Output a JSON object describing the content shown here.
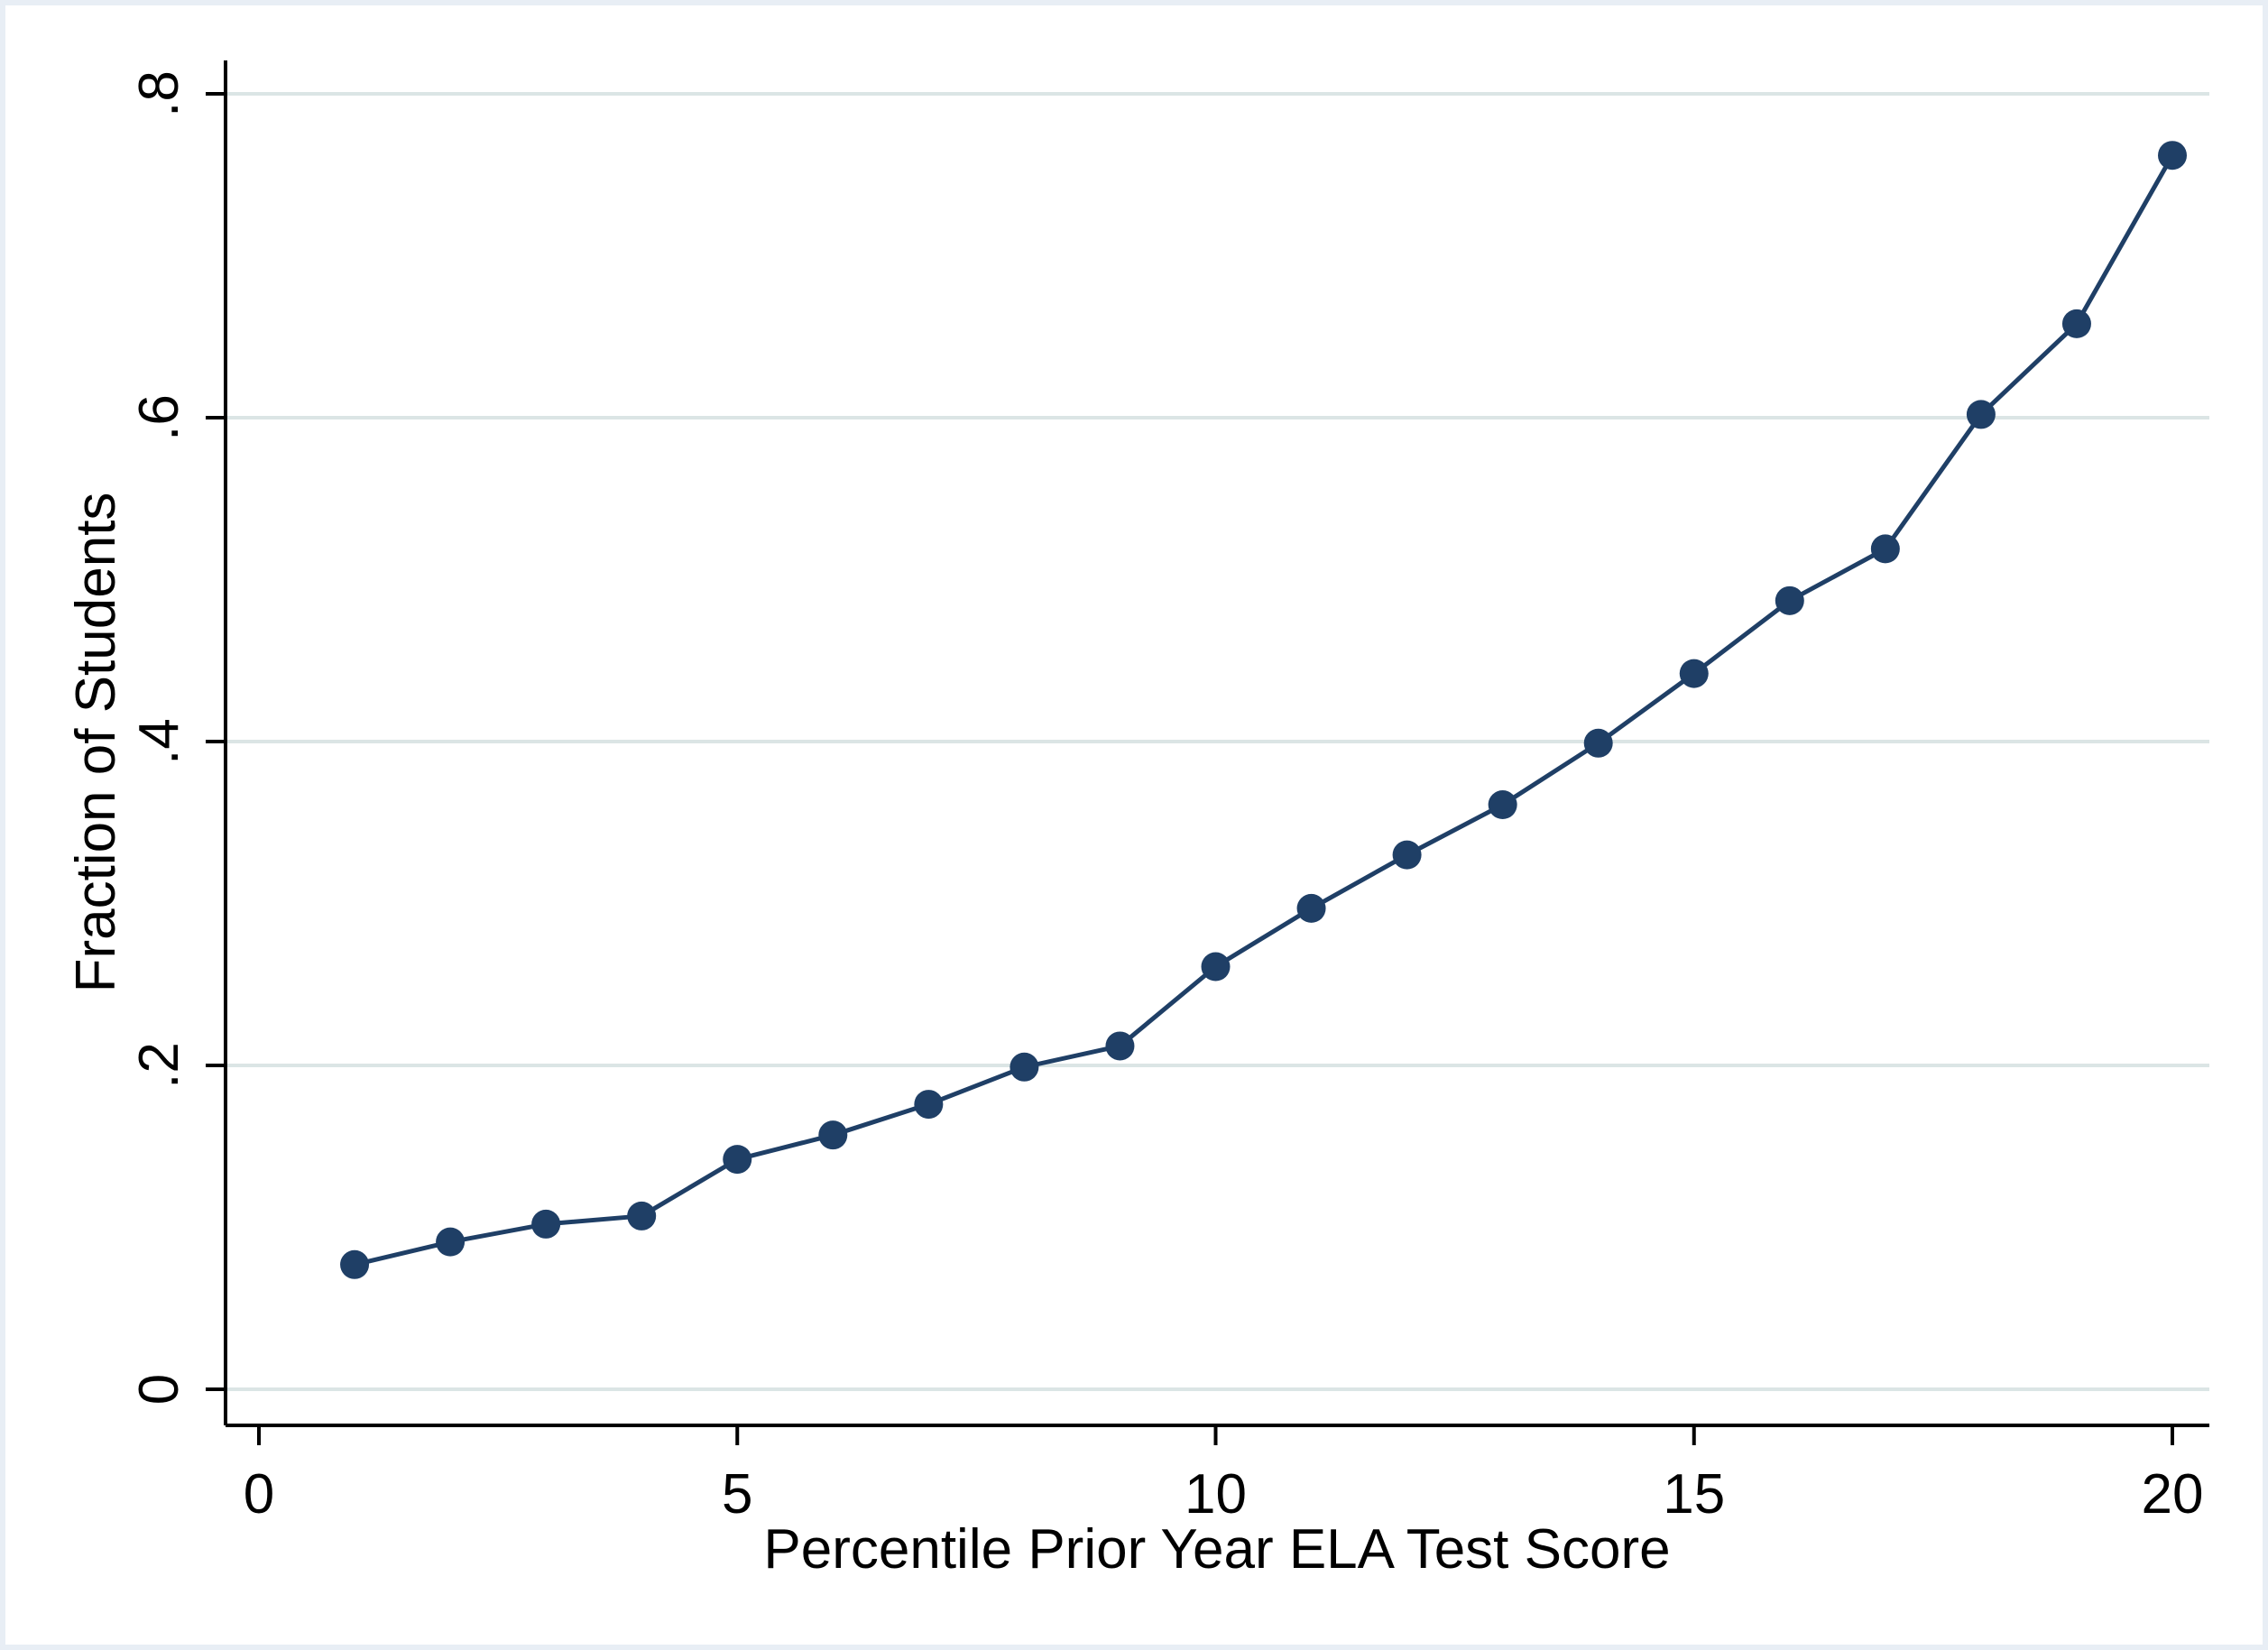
{
  "chart_data": {
    "type": "line",
    "title": "",
    "xlabel": "Percentile Prior Year ELA Test Score",
    "ylabel": "Fraction of Students",
    "xlim": [
      0,
      20
    ],
    "ylim": [
      0,
      0.8
    ],
    "x_ticks": [
      0,
      5,
      10,
      15,
      20
    ],
    "x_tick_labels": [
      "0",
      "5",
      "10",
      "15",
      "20"
    ],
    "y_ticks": [
      0,
      0.2,
      0.4,
      0.6,
      0.8
    ],
    "y_tick_labels": [
      "0",
      ".2",
      ".4",
      ".6",
      ".8"
    ],
    "grid": "horizontal",
    "series": [
      {
        "name": "Fraction of Students",
        "color": "#1f3f66",
        "x": [
          1,
          2,
          3,
          4,
          5,
          6,
          7,
          8,
          9,
          10,
          11,
          12,
          13,
          14,
          15,
          16,
          17,
          18,
          19,
          20
        ],
        "y": [
          0.077,
          0.091,
          0.102,
          0.107,
          0.142,
          0.157,
          0.176,
          0.199,
          0.212,
          0.261,
          0.297,
          0.33,
          0.361,
          0.399,
          0.442,
          0.487,
          0.519,
          0.602,
          0.658,
          0.762
        ]
      }
    ]
  },
  "colors": {
    "grid": "#dbe5e5",
    "axis": "#000000",
    "frame": "#e8eef5"
  }
}
